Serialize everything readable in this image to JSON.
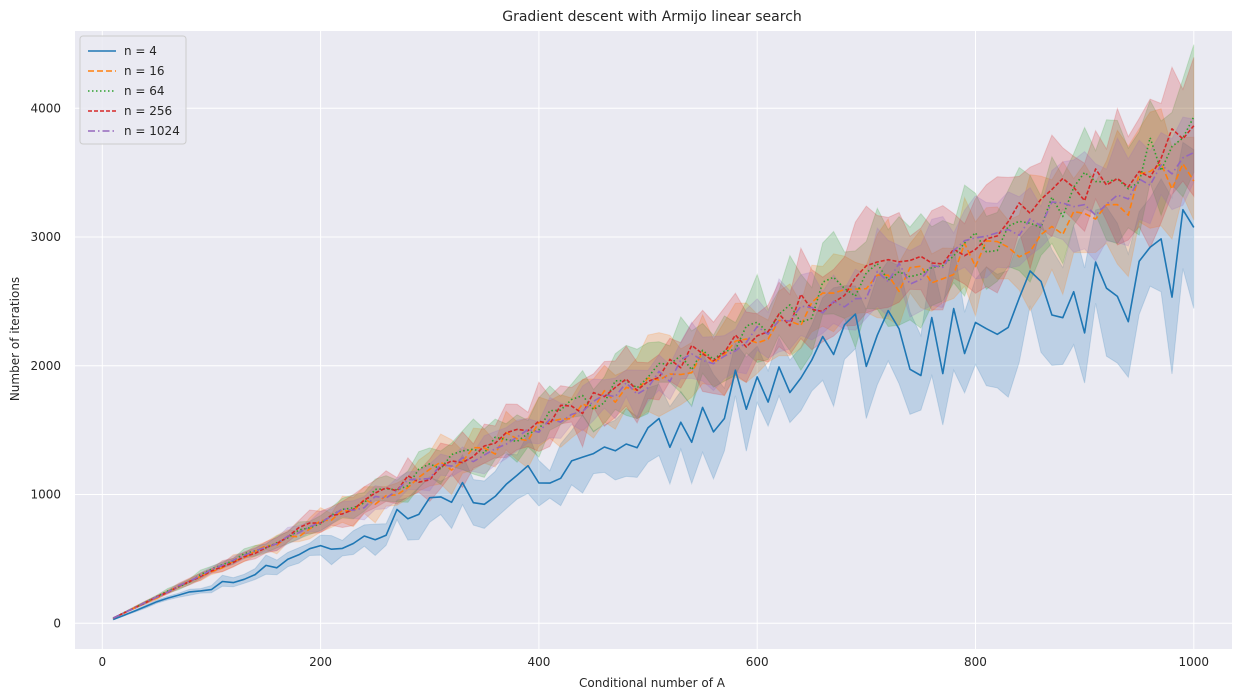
{
  "chart_data": {
    "type": "line",
    "title": "Gradient descent with Armijo linear search",
    "xlabel": "Conditional number of A",
    "ylabel": "Number of iterations",
    "xlim": [
      -25,
      1035
    ],
    "ylim": [
      -200,
      4600
    ],
    "xticks": [
      0,
      200,
      400,
      600,
      800,
      1000
    ],
    "yticks": [
      0,
      1000,
      2000,
      3000,
      4000
    ],
    "grid": true,
    "legend_position": "top-left",
    "series": [
      {
        "name": "n = 4",
        "color": "#1f77b4",
        "style": "solid",
        "ci_band": true,
        "anchors_x": [
          10,
          50,
          100,
          150,
          200,
          250,
          300,
          350,
          400,
          450,
          500,
          550,
          600,
          650,
          700,
          750,
          800,
          850,
          900,
          950,
          1000
        ],
        "anchors_y": [
          30,
          170,
          280,
          430,
          580,
          700,
          930,
          1020,
          1180,
          1350,
          1470,
          1590,
          1870,
          2130,
          2250,
          2150,
          2250,
          2550,
          2500,
          2650,
          2980
        ],
        "noise": 0.12,
        "band_width": 0.16,
        "seed": 11
      },
      {
        "name": "n = 16",
        "color": "#ff7f0e",
        "style": "dashed",
        "ci_band": true,
        "anchors_x": [
          10,
          100,
          200,
          300,
          400,
          500,
          600,
          700,
          800,
          900,
          1000
        ],
        "anchors_y": [
          40,
          400,
          770,
          1160,
          1530,
          1900,
          2250,
          2650,
          2850,
          3200,
          3500
        ],
        "noise": 0.05,
        "band_width": 0.11,
        "seed": 22
      },
      {
        "name": "n = 64",
        "color": "#2ca02c",
        "style": "dotted",
        "ci_band": true,
        "anchors_x": [
          10,
          100,
          200,
          300,
          400,
          500,
          600,
          700,
          800,
          900,
          1000
        ],
        "anchors_y": [
          40,
          410,
          800,
          1190,
          1550,
          1930,
          2280,
          2700,
          2950,
          3400,
          3750
        ],
        "noise": 0.05,
        "band_width": 0.11,
        "seed": 33
      },
      {
        "name": "n = 256",
        "color": "#d62728",
        "style": "dashed-short",
        "ci_band": true,
        "anchors_x": [
          10,
          100,
          200,
          300,
          400,
          500,
          600,
          700,
          800,
          900,
          1000
        ],
        "anchors_y": [
          40,
          410,
          790,
          1170,
          1540,
          1920,
          2270,
          2680,
          2950,
          3400,
          3800
        ],
        "noise": 0.05,
        "band_width": 0.11,
        "seed": 44
      },
      {
        "name": "n = 1024",
        "color": "#9467bd",
        "style": "dashdot",
        "ci_band": true,
        "anchors_x": [
          10,
          100,
          200,
          300,
          400,
          500,
          600,
          700,
          800,
          900,
          1000
        ],
        "anchors_y": [
          40,
          410,
          780,
          1160,
          1520,
          1880,
          2230,
          2600,
          2900,
          3250,
          3700
        ],
        "noise": 0.04,
        "band_width": 0.08,
        "seed": 55
      }
    ]
  }
}
